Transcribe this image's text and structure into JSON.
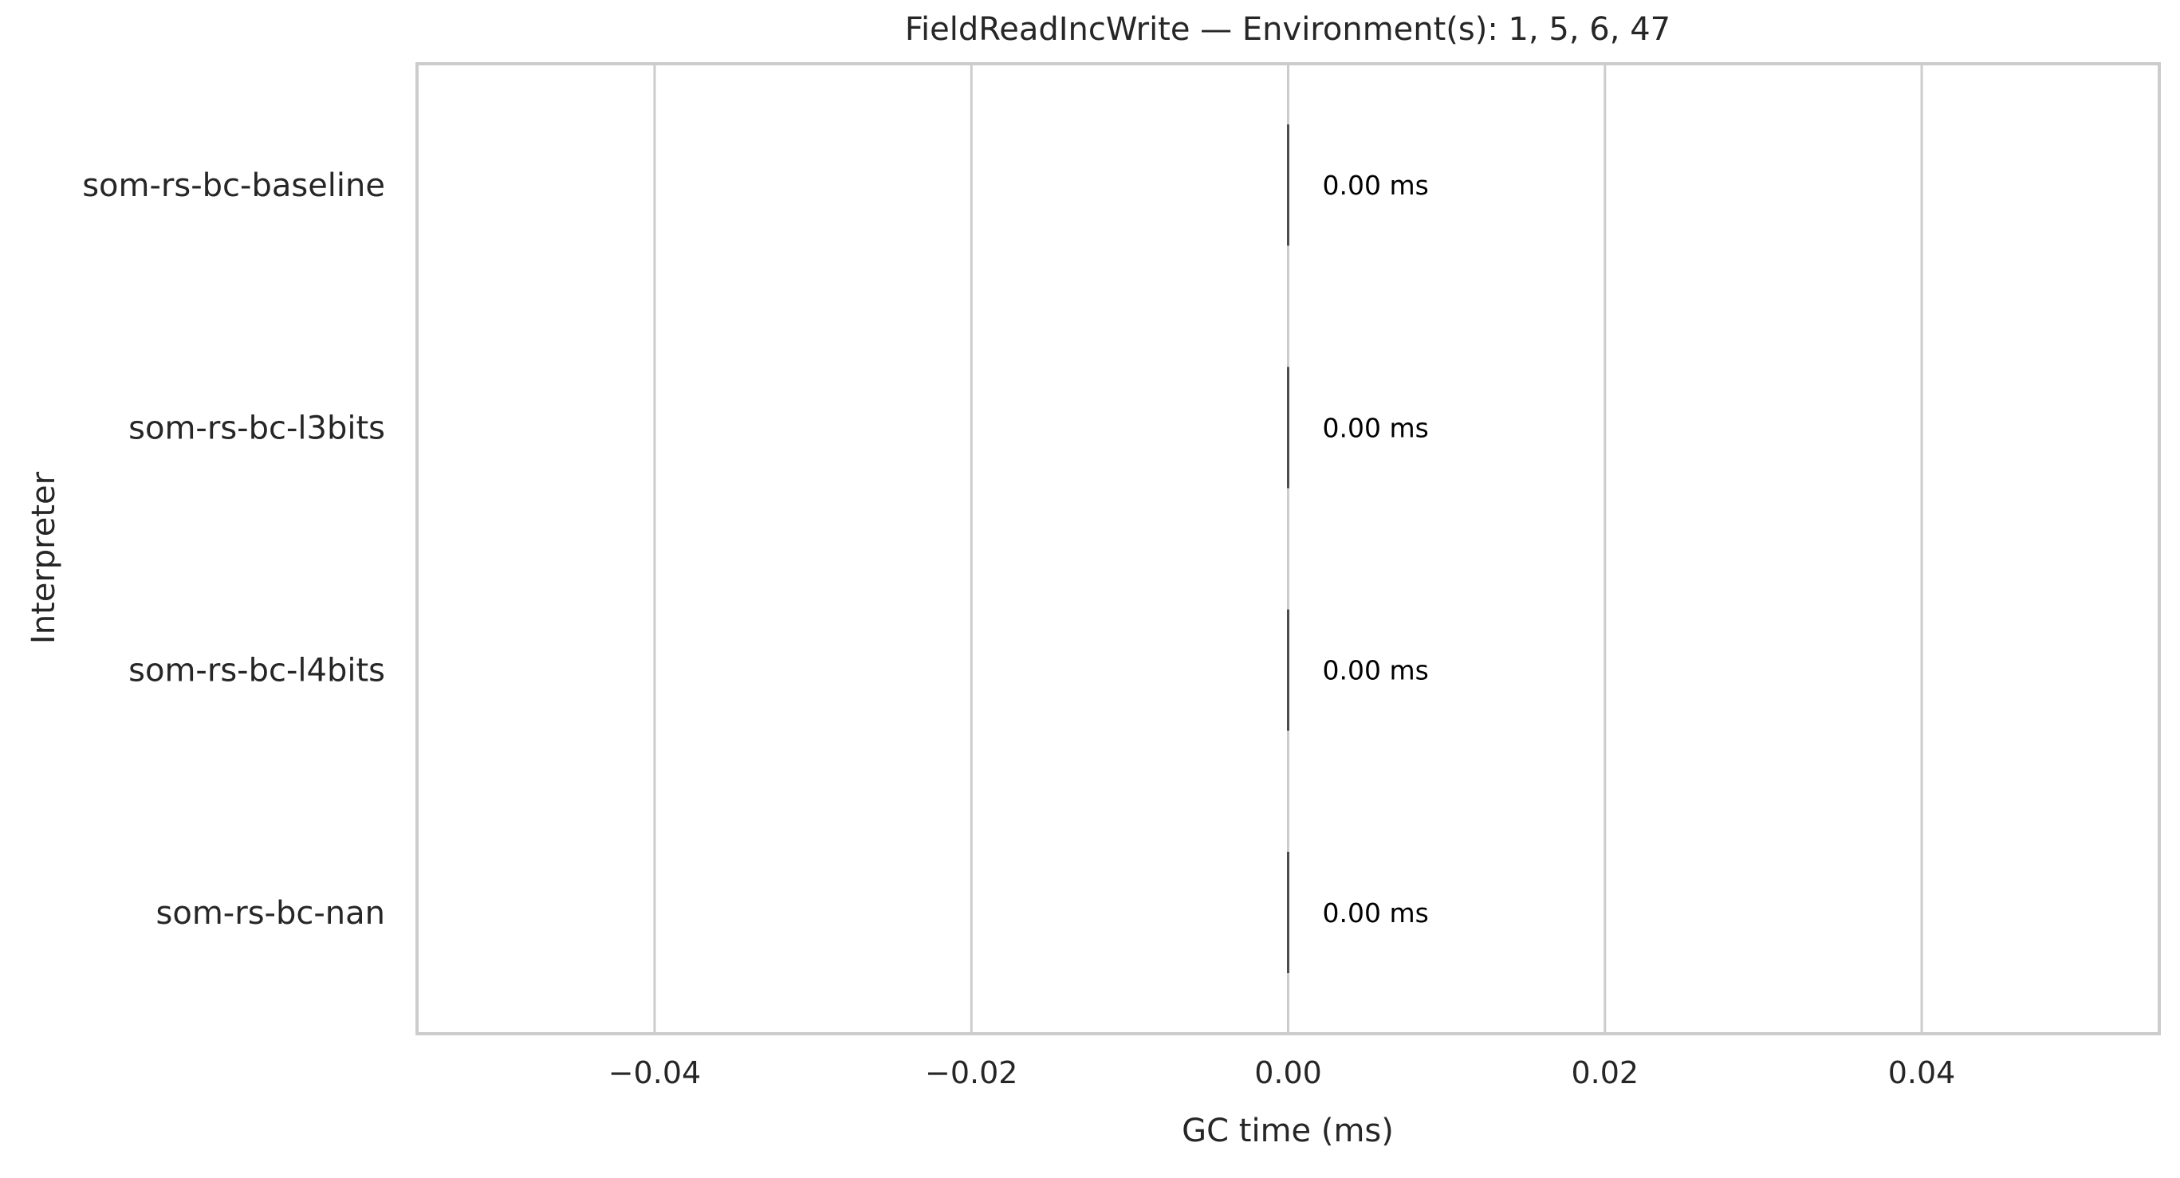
{
  "chart_data": {
    "type": "bar",
    "orientation": "horizontal",
    "title": "FieldReadIncWrite — Environment(s): 1, 5, 6, 47",
    "xlabel": "GC time (ms)",
    "ylabel": "Interpreter",
    "categories": [
      "som-rs-bc-baseline",
      "som-rs-bc-l3bits",
      "som-rs-bc-l4bits",
      "som-rs-bc-nan"
    ],
    "values": [
      0.0,
      0.0,
      0.0,
      0.0
    ],
    "data_labels": [
      "0.00 ms",
      "0.00 ms",
      "0.00 ms",
      "0.00 ms"
    ],
    "xlim": [
      -0.055,
      0.055
    ],
    "xticks": [
      -0.04,
      -0.02,
      0.0,
      0.02,
      0.04
    ],
    "xtick_labels": [
      "−0.04",
      "−0.02",
      "0.00",
      "0.02",
      "0.04"
    ],
    "grid": "vertical",
    "legend": "none",
    "colors": {
      "gridline": "#cccccc",
      "frame": "#cccccc",
      "bar": "#4c4c4c",
      "text": "#262626",
      "label": "#000000"
    }
  }
}
